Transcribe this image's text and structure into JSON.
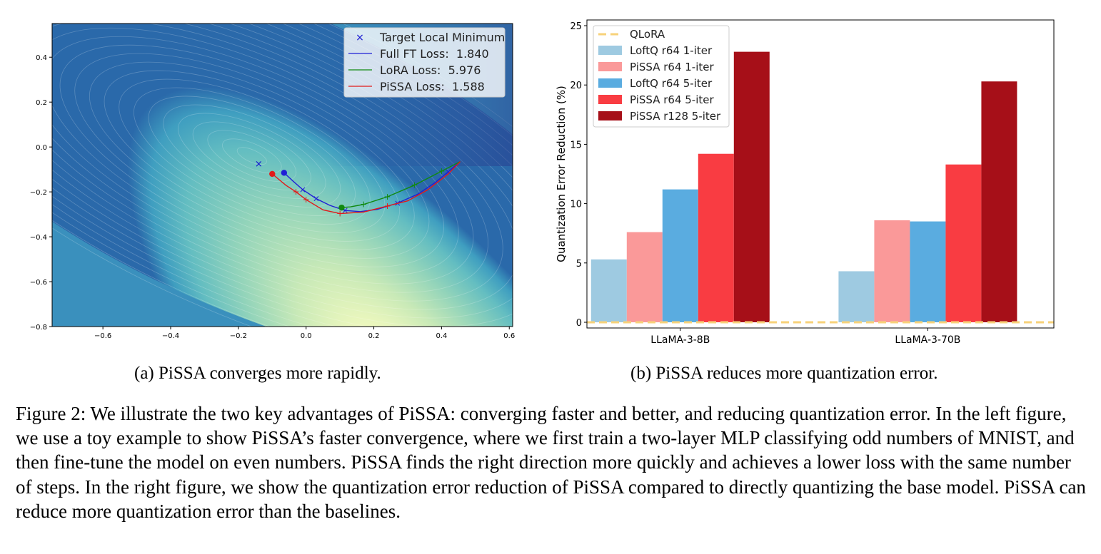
{
  "chart_data": [
    {
      "type": "scatter",
      "subtitle": "(a) PiSSA converges more rapidly.",
      "xlim": [
        -0.75,
        0.61
      ],
      "ylim": [
        -0.8,
        0.55
      ],
      "x_ticks": [
        -0.6,
        -0.4,
        -0.2,
        0.0,
        0.2,
        0.4,
        0.6
      ],
      "y_ticks": [
        0.4,
        0.2,
        0.0,
        -0.2,
        -0.4,
        -0.6,
        -0.8
      ],
      "x_tick_labels": [
        "−0.6",
        "−0.4",
        "−0.2",
        "0.0",
        "0.2",
        "0.4",
        "0.6"
      ],
      "y_tick_labels": [
        "0.4",
        "0.2",
        "0.0",
        "−0.2",
        "−0.4",
        "−0.6",
        "−0.8"
      ],
      "background": "loss contour",
      "legend_position": "upper-right",
      "target": {
        "label": "Target Local Minimum",
        "x": -0.14,
        "y": -0.075,
        "color": "#1010d0"
      },
      "series": [
        {
          "name": "Full FT Loss:  1.840",
          "color": "#1f1fd6",
          "x": [
            0.455,
            0.42,
            0.38,
            0.33,
            0.27,
            0.21,
            0.16,
            0.115,
            0.07,
            0.03,
            -0.01,
            -0.04,
            -0.065
          ],
          "y": [
            -0.065,
            -0.11,
            -0.16,
            -0.21,
            -0.25,
            -0.278,
            -0.288,
            -0.283,
            -0.26,
            -0.23,
            -0.19,
            -0.15,
            -0.115
          ],
          "marker_idx": [
            1,
            4,
            7,
            9,
            10
          ]
        },
        {
          "name": "LoRA Loss:  5.976",
          "color": "#118a11",
          "x": [
            0.455,
            0.4,
            0.32,
            0.24,
            0.17,
            0.13,
            0.105
          ],
          "y": [
            -0.065,
            -0.108,
            -0.17,
            -0.222,
            -0.256,
            -0.267,
            -0.27
          ],
          "marker_idx": [
            1,
            2,
            3,
            4
          ]
        },
        {
          "name": "PiSSA Loss:  1.588",
          "color": "#e01a1a",
          "x": [
            0.455,
            0.42,
            0.36,
            0.3,
            0.24,
            0.17,
            0.1,
            0.05,
            0.0,
            -0.03,
            -0.06,
            -0.1
          ],
          "y": [
            -0.065,
            -0.12,
            -0.19,
            -0.24,
            -0.263,
            -0.29,
            -0.297,
            -0.28,
            -0.235,
            -0.2,
            -0.17,
            -0.12
          ],
          "marker_idx": [
            4,
            6,
            8,
            9
          ]
        }
      ]
    },
    {
      "type": "bar",
      "subtitle": "(b) PiSSA reduces more quantization error.",
      "ylabel": "Quantization Error Reduction (%)",
      "ylim": [
        0,
        25
      ],
      "y_ticks": [
        0,
        5,
        10,
        15,
        20,
        25
      ],
      "categories": [
        "LLaMA-3-8B",
        "LLaMA-3-70B"
      ],
      "legend_position": "upper-left",
      "qlora": {
        "name": "QLoRA",
        "value": 0,
        "color": "#f7d27a"
      },
      "series": [
        {
          "name": "LoftQ r64 1-iter",
          "color": "#9ecae1",
          "values": [
            5.3,
            4.3
          ]
        },
        {
          "name": "PiSSA r64 1-iter",
          "color": "#fa9999",
          "values": [
            7.6,
            8.6
          ]
        },
        {
          "name": "LoftQ r64 5-iter",
          "color": "#5aace0",
          "values": [
            11.2,
            8.5
          ]
        },
        {
          "name": "PiSSA r64 5-iter",
          "color": "#f93c42",
          "values": [
            14.2,
            13.3
          ]
        },
        {
          "name": "PiSSA r128 5-iter",
          "color": "#a60f18",
          "values": [
            22.8,
            20.3
          ]
        }
      ]
    }
  ],
  "caption": "Figure 2: We illustrate the two key advantages of PiSSA: converging faster and better, and reducing quantization error. In the left figure, we use a toy example to show PiSSA’s faster convergence, where we first train a two-layer MLP classifying odd numbers of MNIST, and then fine-tune the model on even numbers. PiSSA finds the right direction more quickly and achieves a lower loss with the same number of steps. In the right figure, we show the quantization error reduction of PiSSA compared to directly quantizing the base model. PiSSA can reduce more quantization error than the baselines."
}
